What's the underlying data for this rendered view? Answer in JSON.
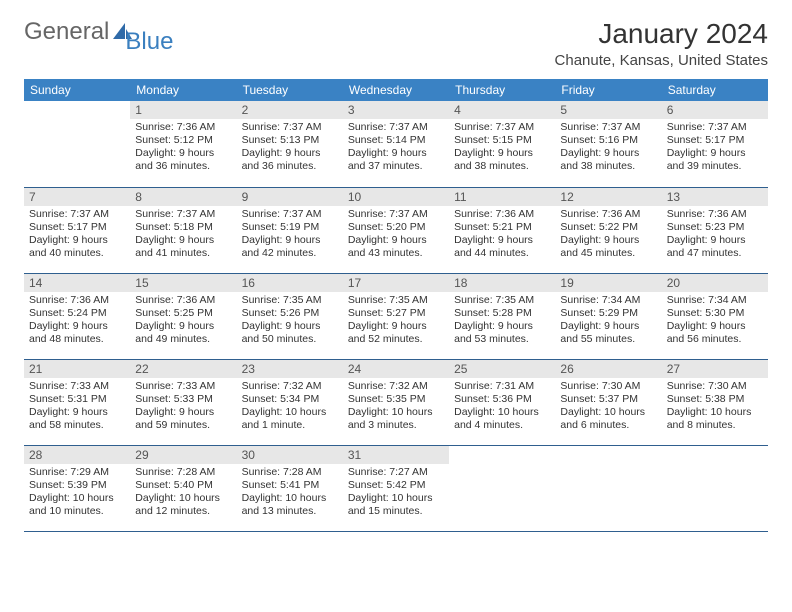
{
  "logo": {
    "text_general": "General",
    "text_blue": "Blue",
    "accent_color": "#3a82c4"
  },
  "header": {
    "month_title": "January 2024",
    "location": "Chanute, Kansas, United States"
  },
  "calendar": {
    "header_bg": "#3a82c4",
    "header_text_color": "#ffffff",
    "daynum_bg": "#e7e7e7",
    "row_border_color": "#2f5f8f",
    "columns": [
      "Sunday",
      "Monday",
      "Tuesday",
      "Wednesday",
      "Thursday",
      "Friday",
      "Saturday"
    ],
    "weeks": [
      [
        {
          "n": "",
          "sunrise": "",
          "sunset": "",
          "daylight": ""
        },
        {
          "n": "1",
          "sunrise": "Sunrise: 7:36 AM",
          "sunset": "Sunset: 5:12 PM",
          "daylight": "Daylight: 9 hours and 36 minutes."
        },
        {
          "n": "2",
          "sunrise": "Sunrise: 7:37 AM",
          "sunset": "Sunset: 5:13 PM",
          "daylight": "Daylight: 9 hours and 36 minutes."
        },
        {
          "n": "3",
          "sunrise": "Sunrise: 7:37 AM",
          "sunset": "Sunset: 5:14 PM",
          "daylight": "Daylight: 9 hours and 37 minutes."
        },
        {
          "n": "4",
          "sunrise": "Sunrise: 7:37 AM",
          "sunset": "Sunset: 5:15 PM",
          "daylight": "Daylight: 9 hours and 38 minutes."
        },
        {
          "n": "5",
          "sunrise": "Sunrise: 7:37 AM",
          "sunset": "Sunset: 5:16 PM",
          "daylight": "Daylight: 9 hours and 38 minutes."
        },
        {
          "n": "6",
          "sunrise": "Sunrise: 7:37 AM",
          "sunset": "Sunset: 5:17 PM",
          "daylight": "Daylight: 9 hours and 39 minutes."
        }
      ],
      [
        {
          "n": "7",
          "sunrise": "Sunrise: 7:37 AM",
          "sunset": "Sunset: 5:17 PM",
          "daylight": "Daylight: 9 hours and 40 minutes."
        },
        {
          "n": "8",
          "sunrise": "Sunrise: 7:37 AM",
          "sunset": "Sunset: 5:18 PM",
          "daylight": "Daylight: 9 hours and 41 minutes."
        },
        {
          "n": "9",
          "sunrise": "Sunrise: 7:37 AM",
          "sunset": "Sunset: 5:19 PM",
          "daylight": "Daylight: 9 hours and 42 minutes."
        },
        {
          "n": "10",
          "sunrise": "Sunrise: 7:37 AM",
          "sunset": "Sunset: 5:20 PM",
          "daylight": "Daylight: 9 hours and 43 minutes."
        },
        {
          "n": "11",
          "sunrise": "Sunrise: 7:36 AM",
          "sunset": "Sunset: 5:21 PM",
          "daylight": "Daylight: 9 hours and 44 minutes."
        },
        {
          "n": "12",
          "sunrise": "Sunrise: 7:36 AM",
          "sunset": "Sunset: 5:22 PM",
          "daylight": "Daylight: 9 hours and 45 minutes."
        },
        {
          "n": "13",
          "sunrise": "Sunrise: 7:36 AM",
          "sunset": "Sunset: 5:23 PM",
          "daylight": "Daylight: 9 hours and 47 minutes."
        }
      ],
      [
        {
          "n": "14",
          "sunrise": "Sunrise: 7:36 AM",
          "sunset": "Sunset: 5:24 PM",
          "daylight": "Daylight: 9 hours and 48 minutes."
        },
        {
          "n": "15",
          "sunrise": "Sunrise: 7:36 AM",
          "sunset": "Sunset: 5:25 PM",
          "daylight": "Daylight: 9 hours and 49 minutes."
        },
        {
          "n": "16",
          "sunrise": "Sunrise: 7:35 AM",
          "sunset": "Sunset: 5:26 PM",
          "daylight": "Daylight: 9 hours and 50 minutes."
        },
        {
          "n": "17",
          "sunrise": "Sunrise: 7:35 AM",
          "sunset": "Sunset: 5:27 PM",
          "daylight": "Daylight: 9 hours and 52 minutes."
        },
        {
          "n": "18",
          "sunrise": "Sunrise: 7:35 AM",
          "sunset": "Sunset: 5:28 PM",
          "daylight": "Daylight: 9 hours and 53 minutes."
        },
        {
          "n": "19",
          "sunrise": "Sunrise: 7:34 AM",
          "sunset": "Sunset: 5:29 PM",
          "daylight": "Daylight: 9 hours and 55 minutes."
        },
        {
          "n": "20",
          "sunrise": "Sunrise: 7:34 AM",
          "sunset": "Sunset: 5:30 PM",
          "daylight": "Daylight: 9 hours and 56 minutes."
        }
      ],
      [
        {
          "n": "21",
          "sunrise": "Sunrise: 7:33 AM",
          "sunset": "Sunset: 5:31 PM",
          "daylight": "Daylight: 9 hours and 58 minutes."
        },
        {
          "n": "22",
          "sunrise": "Sunrise: 7:33 AM",
          "sunset": "Sunset: 5:33 PM",
          "daylight": "Daylight: 9 hours and 59 minutes."
        },
        {
          "n": "23",
          "sunrise": "Sunrise: 7:32 AM",
          "sunset": "Sunset: 5:34 PM",
          "daylight": "Daylight: 10 hours and 1 minute."
        },
        {
          "n": "24",
          "sunrise": "Sunrise: 7:32 AM",
          "sunset": "Sunset: 5:35 PM",
          "daylight": "Daylight: 10 hours and 3 minutes."
        },
        {
          "n": "25",
          "sunrise": "Sunrise: 7:31 AM",
          "sunset": "Sunset: 5:36 PM",
          "daylight": "Daylight: 10 hours and 4 minutes."
        },
        {
          "n": "26",
          "sunrise": "Sunrise: 7:30 AM",
          "sunset": "Sunset: 5:37 PM",
          "daylight": "Daylight: 10 hours and 6 minutes."
        },
        {
          "n": "27",
          "sunrise": "Sunrise: 7:30 AM",
          "sunset": "Sunset: 5:38 PM",
          "daylight": "Daylight: 10 hours and 8 minutes."
        }
      ],
      [
        {
          "n": "28",
          "sunrise": "Sunrise: 7:29 AM",
          "sunset": "Sunset: 5:39 PM",
          "daylight": "Daylight: 10 hours and 10 minutes."
        },
        {
          "n": "29",
          "sunrise": "Sunrise: 7:28 AM",
          "sunset": "Sunset: 5:40 PM",
          "daylight": "Daylight: 10 hours and 12 minutes."
        },
        {
          "n": "30",
          "sunrise": "Sunrise: 7:28 AM",
          "sunset": "Sunset: 5:41 PM",
          "daylight": "Daylight: 10 hours and 13 minutes."
        },
        {
          "n": "31",
          "sunrise": "Sunrise: 7:27 AM",
          "sunset": "Sunset: 5:42 PM",
          "daylight": "Daylight: 10 hours and 15 minutes."
        },
        {
          "n": "",
          "sunrise": "",
          "sunset": "",
          "daylight": ""
        },
        {
          "n": "",
          "sunrise": "",
          "sunset": "",
          "daylight": ""
        },
        {
          "n": "",
          "sunrise": "",
          "sunset": "",
          "daylight": ""
        }
      ]
    ]
  }
}
